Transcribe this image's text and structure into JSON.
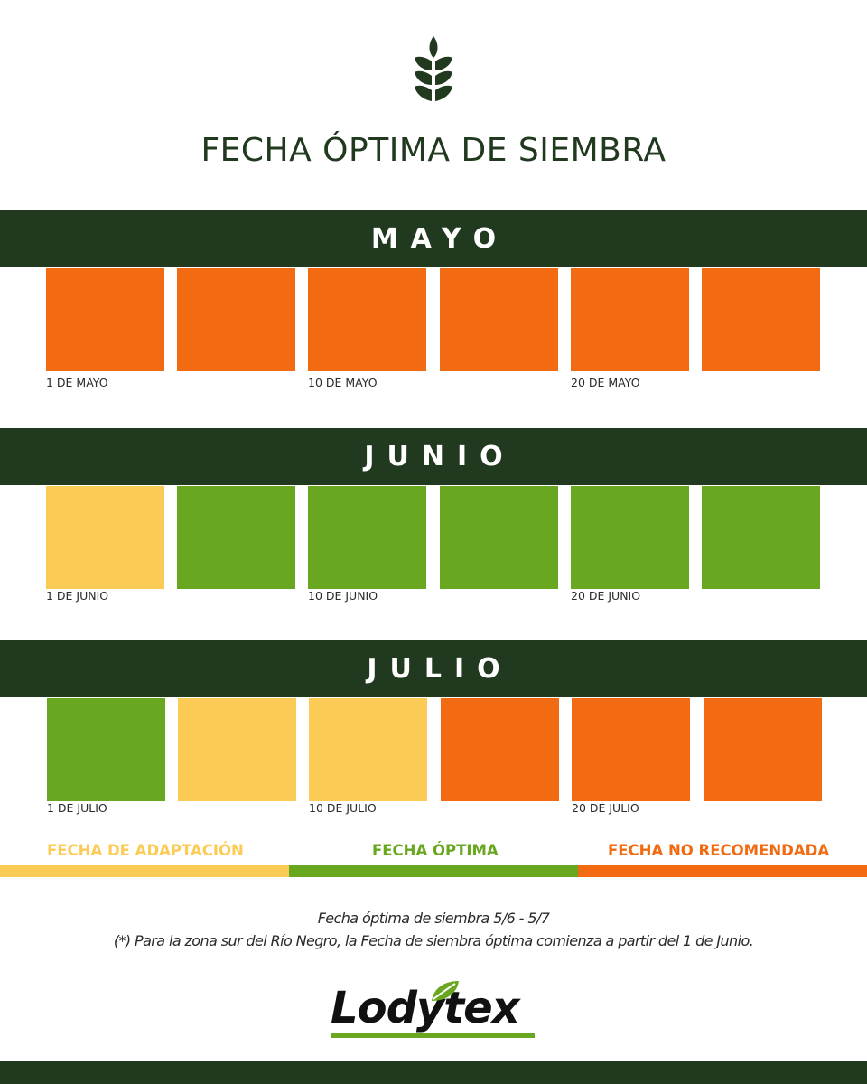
{
  "title": "FECHA ÓPTIMA DE SIEMBRA",
  "colors": {
    "dark_green": "#213a1f",
    "orange": "#f26a11",
    "yellow": "#fccb55",
    "green": "#6aa720"
  },
  "months": [
    {
      "name": "MAYO",
      "cells": [
        "no-recomendada",
        "no-recomendada",
        "no-recomendada",
        "no-recomendada",
        "no-recomendada",
        "no-recomendada"
      ],
      "labels": [
        "1 DE MAYO",
        "10 DE MAYO",
        "20 DE MAYO"
      ]
    },
    {
      "name": "JUNIO",
      "cells": [
        "adaptacion",
        "optima",
        "optima",
        "optima",
        "optima",
        "optima"
      ],
      "labels": [
        "1 DE JUNIO",
        "10 DE JUNIO",
        "20 DE JUNIO"
      ]
    },
    {
      "name": "JULIO",
      "cells": [
        "optima",
        "adaptacion",
        "adaptacion",
        "no-recomendada",
        "no-recomendada",
        "no-recomendada"
      ],
      "labels": [
        "1 DE JULIO",
        "10 DE JULIO",
        "20 DE JULIO"
      ]
    }
  ],
  "legend": [
    {
      "key": "adaptacion",
      "label": "FECHA DE ADAPTACIÓN",
      "color": "#fccb55"
    },
    {
      "key": "optima",
      "label": "FECHA ÓPTIMA",
      "color": "#6aa720"
    },
    {
      "key": "no-recomendada",
      "label": "FECHA NO RECOMENDADA",
      "color": "#f26a11"
    }
  ],
  "notes": {
    "line1": "Fecha óptima de siembra 5/6 - 5/7",
    "line2": "(*) Para la zona sur del Río Negro, la Fecha de siembra óptima comienza a partir del 1 de Junio."
  },
  "brand": {
    "name": "Lodytex",
    "logo_icon": "leaf-icon"
  }
}
